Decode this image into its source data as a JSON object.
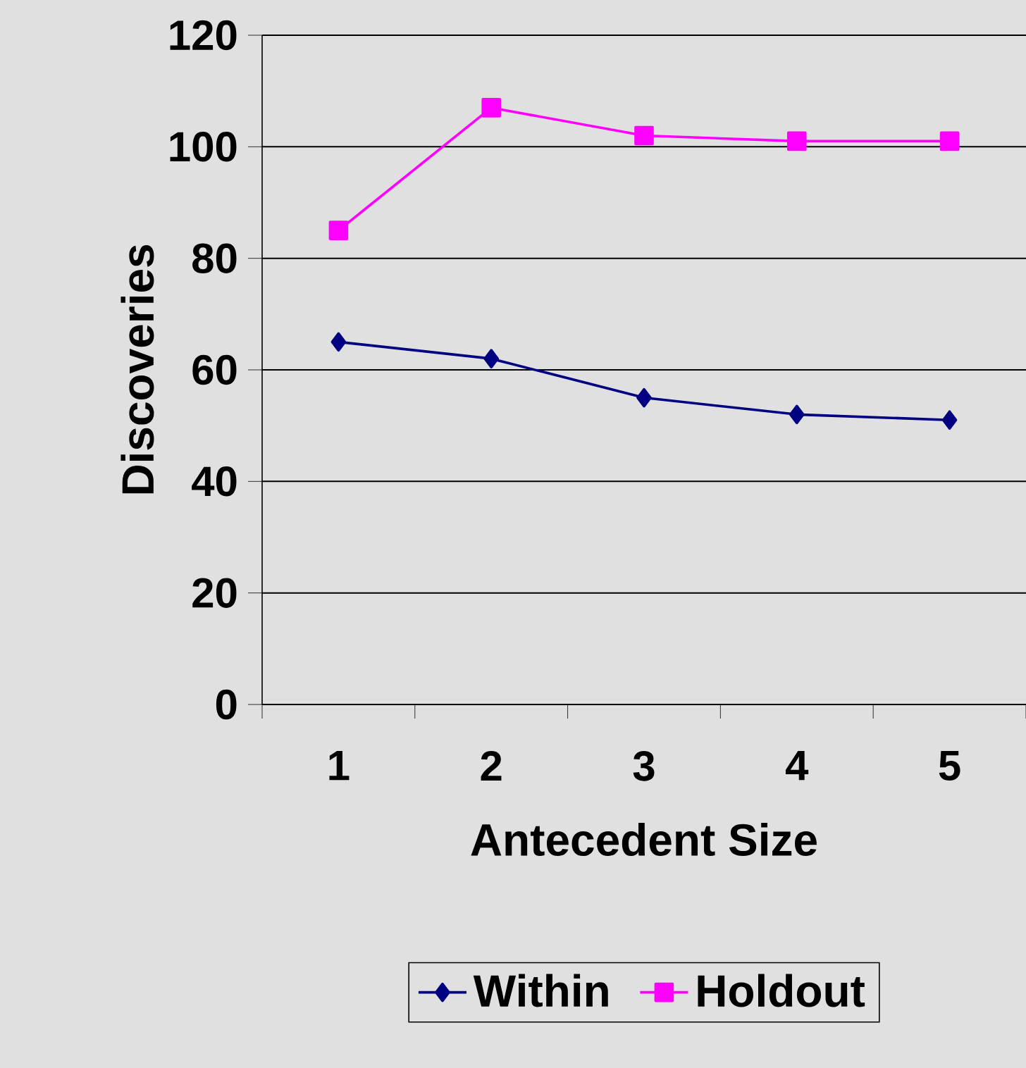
{
  "chart_data": {
    "type": "line",
    "xlabel": "Antecedent Size",
    "ylabel": "Discoveries",
    "categories": [
      "1",
      "2",
      "3",
      "4",
      "5"
    ],
    "series": [
      {
        "name": "Within",
        "color": "#000080",
        "marker": "diamond",
        "values": [
          65,
          62,
          55,
          52,
          51
        ]
      },
      {
        "name": "Holdout",
        "color": "#ff00ff",
        "marker": "square",
        "values": [
          85,
          107,
          102,
          101,
          101
        ]
      }
    ],
    "ylim": [
      0,
      120
    ],
    "yticks": [
      0,
      20,
      40,
      60,
      80,
      100,
      120
    ],
    "grid": "y",
    "legend": "bottom",
    "line_style": "solid"
  }
}
